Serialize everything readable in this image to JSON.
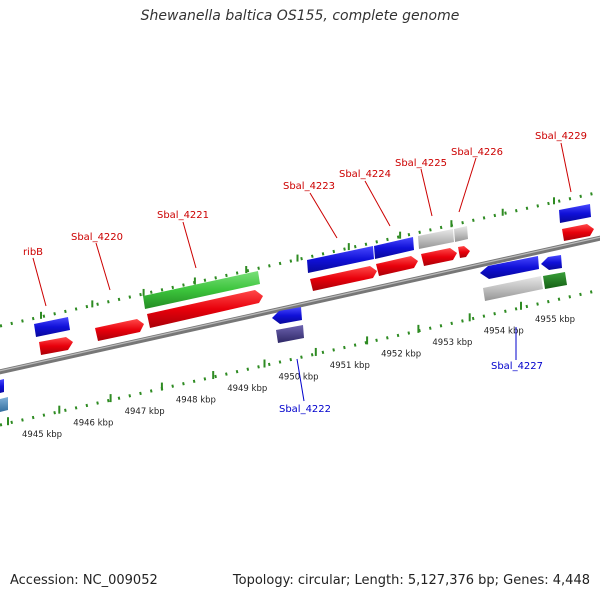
{
  "title": "Shewanella baltica OS155, complete genome",
  "accession": "Accession: NC_009052",
  "summary": "Topology: circular; Length: 5,127,376 bp; Genes: 4,448",
  "colors": {
    "forward": "#e8000b",
    "reverse": "#1010d8",
    "rna": "#3cc43c",
    "pseudo": "#c0c0c0",
    "highlight": "#4a3f8a",
    "tick": "#2e8b22",
    "backbone": "#888888",
    "label_red": "#cc0000",
    "label_blue": "#0000cc"
  },
  "scale": {
    "unit": "kbp",
    "ticks": [
      {
        "kbp": 4945,
        "label": "4945 kbp"
      },
      {
        "kbp": 4946,
        "label": "4946 kbp"
      },
      {
        "kbp": 4947,
        "label": "4947 kbp"
      },
      {
        "kbp": 4948,
        "label": "4948 kbp"
      },
      {
        "kbp": 4949,
        "label": "4949 kbp"
      },
      {
        "kbp": 4950,
        "label": "4950 kbp"
      },
      {
        "kbp": 4951,
        "label": "4951 kbp"
      },
      {
        "kbp": 4952,
        "label": "4952 kbp"
      },
      {
        "kbp": 4953,
        "label": "4953 kbp"
      },
      {
        "kbp": 4954,
        "label": "4954 kbp"
      },
      {
        "kbp": 4955,
        "label": "4955 kbp"
      }
    ]
  },
  "gene_labels": [
    {
      "id": "ribB",
      "label": "ribB",
      "side": "top"
    },
    {
      "id": "sbal-4220",
      "label": "Sbal_4220",
      "side": "top"
    },
    {
      "id": "sbal-4221",
      "label": "Sbal_4221",
      "side": "top"
    },
    {
      "id": "sbal-4223",
      "label": "Sbal_4223",
      "side": "top"
    },
    {
      "id": "sbal-4224",
      "label": "Sbal_4224",
      "side": "top"
    },
    {
      "id": "sbal-4225",
      "label": "Sbal_4225",
      "side": "top"
    },
    {
      "id": "sbal-4226",
      "label": "Sbal_4226",
      "side": "top"
    },
    {
      "id": "sbal-4229",
      "label": "Sbal_4229",
      "side": "top"
    },
    {
      "id": "sbal-4222",
      "label": "Sbal_4222",
      "side": "bottom"
    },
    {
      "id": "sbal-4227",
      "label": "Sbal_4227",
      "side": "bottom"
    }
  ]
}
